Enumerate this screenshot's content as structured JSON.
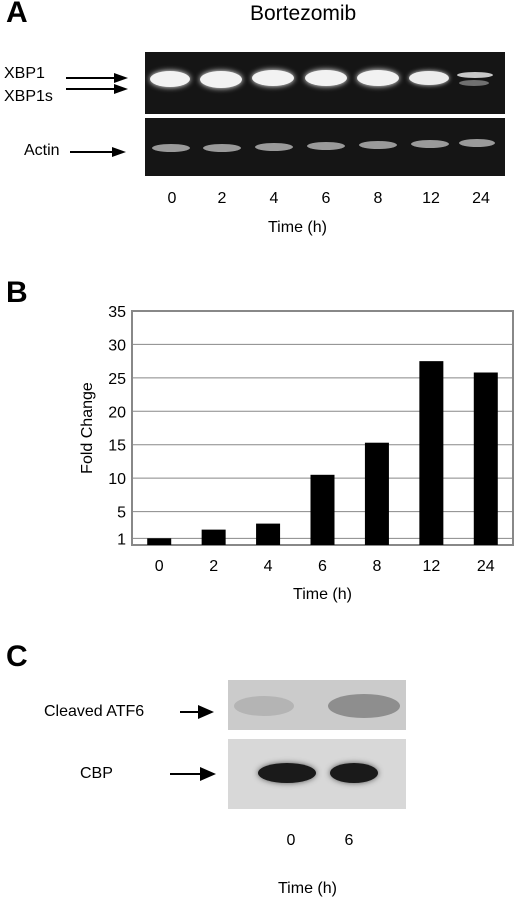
{
  "panel_a": {
    "letter": "A",
    "title": "Bortezomib",
    "labels": {
      "xbp1": "XBP1",
      "xbp1s": "XBP1s",
      "actin": "Actin"
    },
    "lanes": [
      "0",
      "2",
      "4",
      "6",
      "8",
      "12",
      "24"
    ],
    "xlabel": "Time (h)"
  },
  "panel_b": {
    "letter": "B"
  },
  "chart_data": {
    "type": "bar",
    "categories": [
      "0",
      "2",
      "4",
      "6",
      "8",
      "12",
      "24"
    ],
    "values": [
      1,
      2.3,
      3.2,
      10.5,
      15.3,
      27.5,
      25.8
    ],
    "xlabel": "Time (h)",
    "ylabel": "Fold Change",
    "yticks": [
      "1",
      "5",
      "10",
      "15",
      "20",
      "25",
      "30",
      "35"
    ],
    "ylim": [
      0,
      35
    ],
    "grid": true,
    "bar_color": "#000000"
  },
  "panel_c": {
    "letter": "C",
    "labels": {
      "cleaved_atf6": "Cleaved ATF6",
      "cbp": "CBP"
    },
    "lanes": [
      "0",
      "6"
    ],
    "xlabel": "Time (h)"
  }
}
